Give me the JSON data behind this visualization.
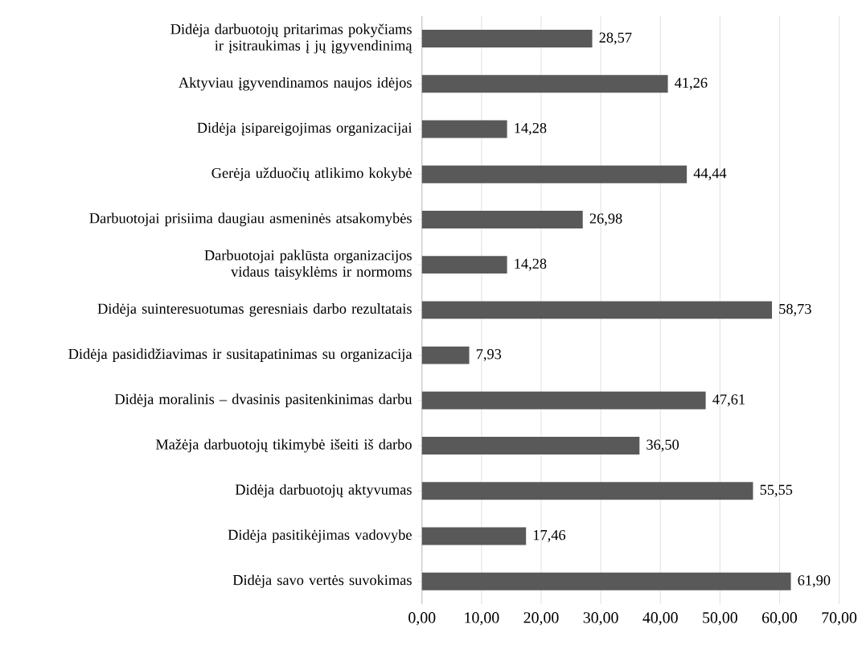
{
  "chart_data": {
    "type": "bar",
    "orientation": "horizontal",
    "categories": [
      "Didėja darbuotojų pritarimas pokyčiams ir įsitraukimas į jų įgyvendinimą",
      "Aktyviau įgyvendinamos naujos idėjos",
      "Didėja įsipareigojimas organizacijai",
      "Gerėja užduočių atlikimo kokybė",
      "Darbuotojai prisiima daugiau asmeninės atsakomybės",
      "Darbuotojai paklūsta organizacijos vidaus taisyklėms ir normoms",
      "Didėja suinteresuotumas geresniais darbo rezultatais",
      "Didėja pasididžiavimas ir susitapatinimas su organizacija",
      "Didėja moralinis – dvasinis pasitenkinimas darbu",
      "Mažėja darbuotojų tikimybė išeiti iš darbo",
      "Didėja darbuotojų aktyvumas",
      "Didėja pasitikėjimas vadovybe",
      "Didėja savo vertės suvokimas"
    ],
    "values": [
      28.57,
      41.26,
      14.28,
      44.44,
      26.98,
      14.28,
      58.73,
      7.93,
      47.61,
      36.5,
      55.55,
      17.46,
      61.9
    ],
    "value_labels": [
      "28,57",
      "41,26",
      "14,28",
      "44,44",
      "26,98",
      "14,28",
      "58,73",
      "7,93",
      "47,61",
      "36,50",
      "55,55",
      "17,46",
      "61,90"
    ],
    "color": "#595959",
    "xlim": [
      0,
      70
    ],
    "xticks": [
      {
        "value": 0,
        "label": "0,00"
      },
      {
        "value": 10,
        "label": "10,00"
      },
      {
        "value": 20,
        "label": "20,00"
      },
      {
        "value": 30,
        "label": "30,00"
      },
      {
        "value": 40,
        "label": "40,00"
      },
      {
        "value": 50,
        "label": "50,00"
      },
      {
        "value": 60,
        "label": "60,00"
      },
      {
        "value": 70,
        "label": "70,00"
      }
    ],
    "grid": "x"
  }
}
